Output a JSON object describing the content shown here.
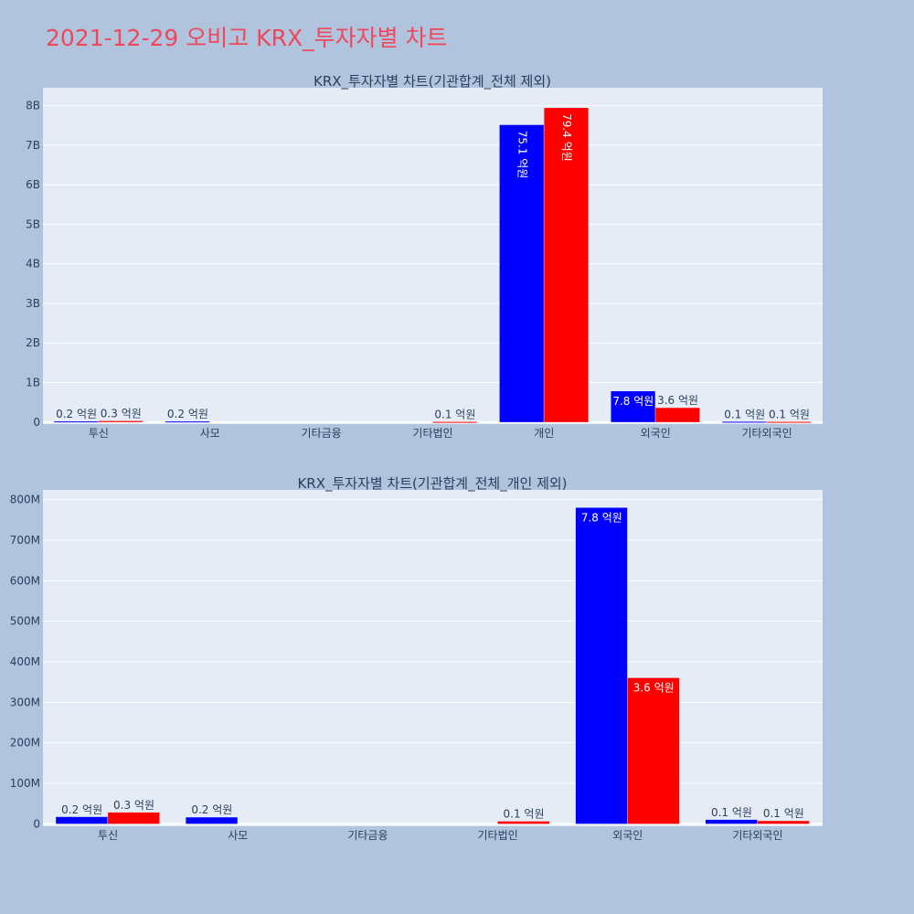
{
  "page": {
    "title": "2021-12-29 오비고 KRX_투자자별 차트"
  },
  "colors": {
    "background": "#b0c4de",
    "plot_background": "#e5ecf6",
    "grid": "#ffffff",
    "title": "#ef475d",
    "series_1": "#0000ff",
    "series_2": "#ff0000",
    "text": "#2a3f5f"
  },
  "chart_data": [
    {
      "type": "bar",
      "title": "KRX_투자자별 차트(기관합계_전체 제외)",
      "categories": [
        "투신",
        "사모",
        "기타금융",
        "기타법인",
        "개인",
        "외국인",
        "기타외국인"
      ],
      "yticks": [
        {
          "value": 0,
          "label": "0"
        },
        {
          "value": 1000000000,
          "label": "1B"
        },
        {
          "value": 2000000000,
          "label": "2B"
        },
        {
          "value": 3000000000,
          "label": "3B"
        },
        {
          "value": 4000000000,
          "label": "4B"
        },
        {
          "value": 5000000000,
          "label": "5B"
        },
        {
          "value": 6000000000,
          "label": "6B"
        },
        {
          "value": 7000000000,
          "label": "7B"
        },
        {
          "value": 8000000000,
          "label": "8B"
        }
      ],
      "ylim": [
        -50000000,
        8450000000
      ],
      "series": [
        {
          "color": "#0000ff",
          "values": [
            17000000,
            16000000,
            0,
            0,
            7510000000,
            780000000,
            10000000
          ],
          "labels": [
            "0.2 억원",
            "0.2 억원",
            "",
            "",
            "75.1 억원",
            "7.8 억원",
            "0.1 억원"
          ],
          "label_pos": [
            "out",
            "out",
            "",
            "",
            "in-vertical",
            "in",
            "out"
          ]
        },
        {
          "color": "#ff0000",
          "values": [
            28000000,
            0,
            0,
            6000000,
            7940000000,
            360000000,
            7000000
          ],
          "labels": [
            "0.3 억원",
            "",
            "",
            "0.1 억원",
            "79.4 억원",
            "3.6 억원",
            "0.1 억원"
          ],
          "label_pos": [
            "out",
            "",
            "",
            "out",
            "in-vertical",
            "out",
            "out"
          ]
        }
      ]
    },
    {
      "type": "bar",
      "title": "KRX_투자자별 차트(기관합계_전체_개인 제외)",
      "categories": [
        "투신",
        "사모",
        "기타금융",
        "기타법인",
        "외국인",
        "기타외국인"
      ],
      "yticks": [
        {
          "value": 0,
          "label": "0"
        },
        {
          "value": 100000000,
          "label": "100M"
        },
        {
          "value": 200000000,
          "label": "200M"
        },
        {
          "value": 300000000,
          "label": "300M"
        },
        {
          "value": 400000000,
          "label": "400M"
        },
        {
          "value": 500000000,
          "label": "500M"
        },
        {
          "value": 600000000,
          "label": "600M"
        },
        {
          "value": 700000000,
          "label": "700M"
        },
        {
          "value": 800000000,
          "label": "800M"
        }
      ],
      "ylim": [
        -6000000,
        824000000
      ],
      "series": [
        {
          "color": "#0000ff",
          "values": [
            17000000,
            16000000,
            0,
            0,
            780000000,
            10000000
          ],
          "labels": [
            "0.2 억원",
            "0.2 억원",
            "",
            "",
            "7.8 억원",
            "0.1 억원"
          ],
          "label_pos": [
            "out",
            "out",
            "",
            "",
            "in",
            "out"
          ]
        },
        {
          "color": "#ff0000",
          "values": [
            28000000,
            0,
            0,
            6000000,
            360000000,
            7000000
          ],
          "labels": [
            "0.3 억원",
            "",
            "",
            "0.1 억원",
            "3.6 억원",
            "0.1 억원"
          ],
          "label_pos": [
            "out",
            "",
            "",
            "out",
            "in",
            "out"
          ]
        }
      ]
    }
  ]
}
